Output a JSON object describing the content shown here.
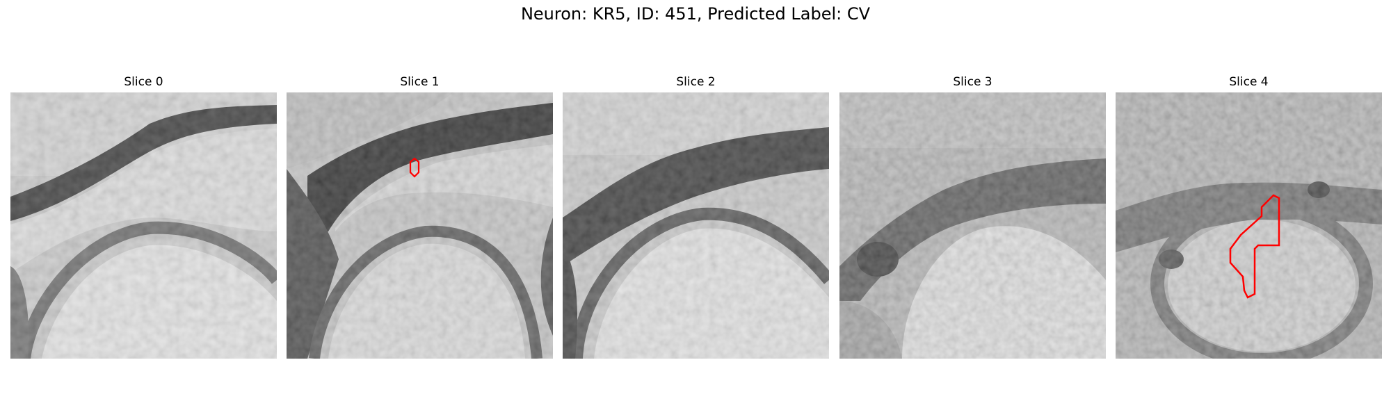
{
  "figure": {
    "title": "Neuron: KR5, ID: 451, Predicted Label: CV"
  },
  "panels": [
    {
      "title": "Slice 0"
    },
    {
      "title": "Slice 1"
    },
    {
      "title": "Slice 2"
    },
    {
      "title": "Slice 3"
    },
    {
      "title": "Slice 4"
    }
  ],
  "colors": {
    "contour": "#ff0000",
    "background": "#ffffff"
  }
}
